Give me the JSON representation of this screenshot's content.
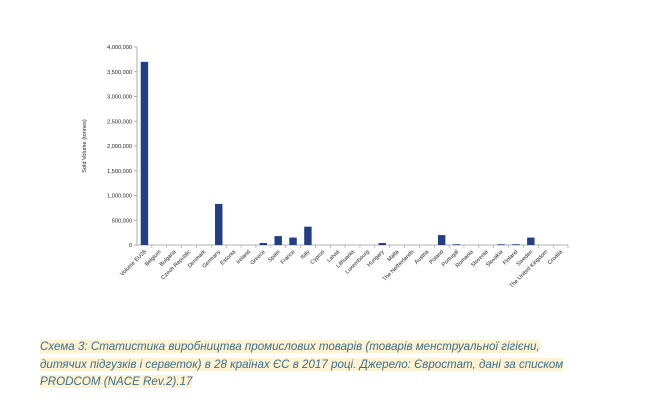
{
  "chart_data": {
    "type": "bar",
    "ylabel": "Sold Volume (tonnes)",
    "xlabel": "",
    "ylim": [
      0,
      4000000
    ],
    "yticks": [
      0,
      500000,
      1000000,
      1500000,
      2000000,
      2500000,
      3000000,
      3500000,
      4000000
    ],
    "ytick_labels": [
      "0",
      "500,000",
      "1,000,000",
      "1,500,000",
      "2,000,000",
      "2,500,000",
      "3,000,000",
      "3,500,000",
      "4,000,000"
    ],
    "grid": false,
    "bar_color": "#233f84",
    "categories": [
      "Volume EU28",
      "Belgium",
      "Bulgaria",
      "Czech Republic",
      "Denmark",
      "Germany",
      "Estonia",
      "Ireland",
      "Greece",
      "Spain",
      "France",
      "Italy",
      "Cyprus",
      "Latvia",
      "Lithuania",
      "Luxembourg",
      "Hungary",
      "Malta",
      "The Netherlands",
      "Austria",
      "Poland",
      "Portugal",
      "Romania",
      "Slovenia",
      "Slovakia",
      "Finland",
      "Sweden",
      "The United Kingdom",
      "Croatia"
    ],
    "values": [
      3700000,
      0,
      0,
      0,
      0,
      830000,
      0,
      0,
      40000,
      180000,
      150000,
      370000,
      0,
      0,
      0,
      0,
      40000,
      0,
      0,
      0,
      200000,
      15000,
      0,
      0,
      15000,
      15000,
      150000,
      0,
      0
    ]
  },
  "caption": {
    "line1": "Схема 3: Статистика  виробництва промислових товарів (товарів менструальної гігієни,",
    "line2": "дитячих підгузків і серветок) в 28 країнах ЄС в  2017 році. Джерело: Євростат, дані за списком",
    "line3": "PRODCOM (NACE Rev.2).17"
  }
}
